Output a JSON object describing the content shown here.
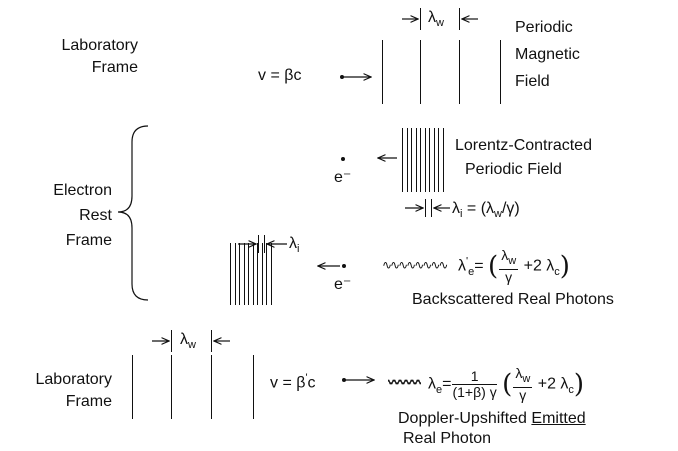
{
  "lab_frame_top": {
    "label_line1": "Laboratory",
    "label_line2": "Frame",
    "velocity": "v = βc",
    "wavelength_label": "λ",
    "wavelength_sub": "w",
    "field_line1": "Periodic",
    "field_line2": "Magnetic",
    "field_line3": "Field"
  },
  "rest_frame": {
    "label_line1": "Electron",
    "label_line2": "Rest",
    "label_line3": "Frame",
    "electron_label": "e⁻",
    "contracted_line1": "Lorentz-Contracted",
    "contracted_line2": "Periodic Field",
    "lambda_i_eq": "λ",
    "lambda_i_sub": "i",
    "lambda_i_rhs_a": "= ",
    "lambda_i_rhs_b": "(λ",
    "lambda_i_rhs_c": "w",
    "lambda_i_rhs_d": "/γ)",
    "wave_squiggle": "∿∿∿∿∿∿∿∿",
    "lambda_e_prime": "λ",
    "lambda_e_prime_sub": "e",
    "lambda_e_prime_sup": "'",
    "frac_num": "λ",
    "frac_num_sub": "w",
    "frac_den": "γ",
    "plus_term": "+2 λ",
    "plus_term_sub": "c",
    "backscattered": "Backscattered Real Photons"
  },
  "lab_frame_bottom": {
    "label_line1": "Laboratory",
    "label_line2": "Frame",
    "wavelength_label": "λ",
    "wavelength_sub": "w",
    "velocity": "v = β",
    "velocity_prime": "'",
    "velocity_c": "c",
    "lambda_e": "λ",
    "lambda_e_sub": "e",
    "frac1_num": "1",
    "frac1_den": "(1+β) γ",
    "frac2_num": "λ",
    "frac2_num_sub": "w",
    "frac2_den": "γ",
    "plus_term": "+2 λ",
    "plus_term_sub": "c",
    "emitted_prefix": "Doppler-Upshifted ",
    "emitted_word": "Emitted",
    "emitted_line2": "Real Photon"
  }
}
